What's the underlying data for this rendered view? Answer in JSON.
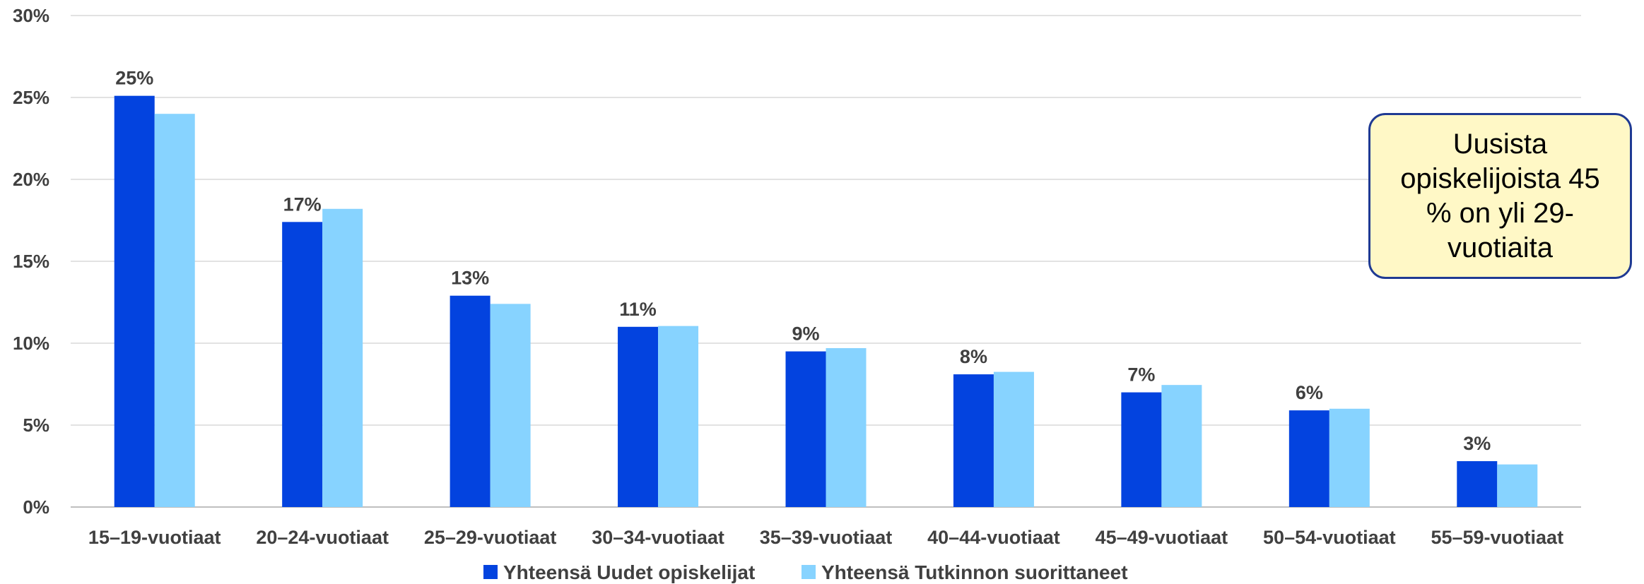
{
  "chart_data": {
    "type": "bar",
    "categories": [
      "15–19-vuotiaat",
      "20–24-vuotiaat",
      "25–29-vuotiaat",
      "30–34-vuotiaat",
      "35–39-vuotiaat",
      "40–44-vuotiaat",
      "45–49-vuotiaat",
      "50–54-vuotiaat",
      "55–59-vuotiaat"
    ],
    "series": [
      {
        "name": "Yhteensä Uudet opiskelijat",
        "color": "#0343df",
        "values": [
          25.1,
          17.4,
          12.9,
          11.0,
          9.5,
          8.1,
          7.0,
          5.9,
          2.8
        ]
      },
      {
        "name": "Yhteensä Tutkinnon suorittaneet",
        "color": "#87d3ff",
        "values": [
          24.0,
          18.2,
          12.4,
          11.05,
          9.7,
          8.25,
          7.45,
          6.0,
          2.6
        ]
      }
    ],
    "data_labels": [
      "25%",
      "17%",
      "13%",
      "11%",
      "9%",
      "8%",
      "7%",
      "6%",
      "3%"
    ],
    "yticks": [
      "0%",
      "5%",
      "10%",
      "15%",
      "20%",
      "25%",
      "30%"
    ],
    "ylim": [
      0,
      30
    ],
    "grid": true,
    "legend_position": "bottom",
    "annotation": "Uusista opiskelijoista 45 % on yli 29-vuotiaita"
  }
}
